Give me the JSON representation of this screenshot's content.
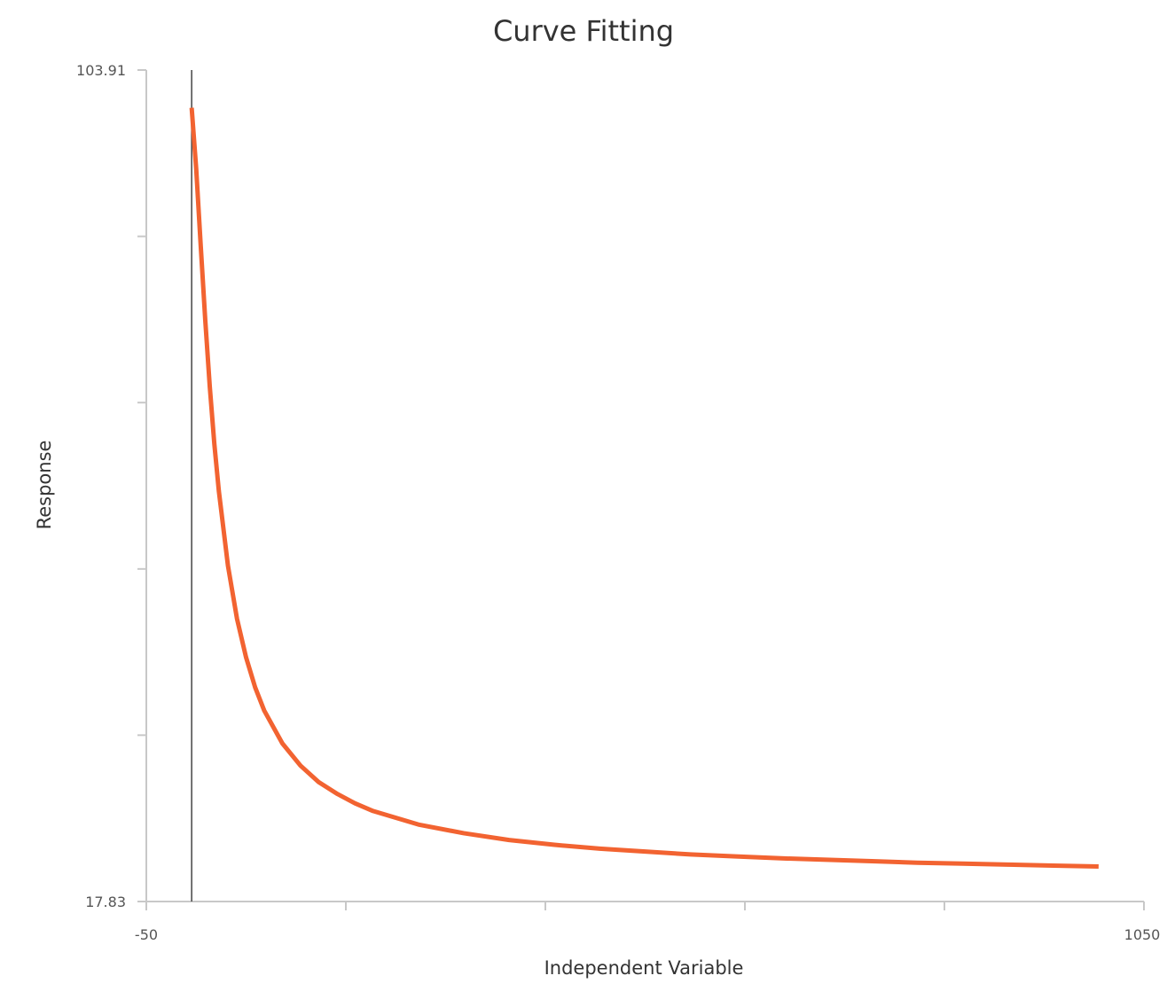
{
  "chart_data": {
    "type": "line",
    "title": "Curve Fitting",
    "xlabel": "Independent Variable",
    "ylabel": "Response",
    "xlim": [
      -50,
      1050
    ],
    "ylim": [
      17.83,
      103.91
    ],
    "x_tick_labels": [
      "-50",
      "1050"
    ],
    "y_tick_labels": [
      "17.83",
      "103.91"
    ],
    "x_tick_values": [
      -50,
      170,
      390,
      610,
      830,
      1050
    ],
    "y_tick_values": [
      17.83,
      35.05,
      52.26,
      69.48,
      86.69,
      103.91
    ],
    "reference_line_x": 0,
    "grid": false,
    "legend": "none",
    "series": [
      {
        "color": "#f26331",
        "x": [
          0,
          5,
          10,
          15,
          20,
          25,
          30,
          40,
          50,
          60,
          70,
          80,
          100,
          120,
          140,
          160,
          180,
          200,
          250,
          300,
          350,
          400,
          450,
          500,
          550,
          600,
          650,
          700,
          750,
          800,
          850,
          900,
          950,
          1000
        ],
        "y": [
          100.0,
          93.7,
          85.7,
          78.0,
          71.1,
          65.2,
          60.3,
          52.6,
          47.1,
          43.1,
          40.0,
          37.6,
          34.2,
          31.9,
          30.2,
          29.0,
          28.0,
          27.2,
          25.8,
          24.9,
          24.2,
          23.7,
          23.3,
          23.0,
          22.7,
          22.5,
          22.3,
          22.15,
          22.0,
          21.85,
          21.75,
          21.65,
          21.55,
          21.45
        ]
      }
    ]
  }
}
